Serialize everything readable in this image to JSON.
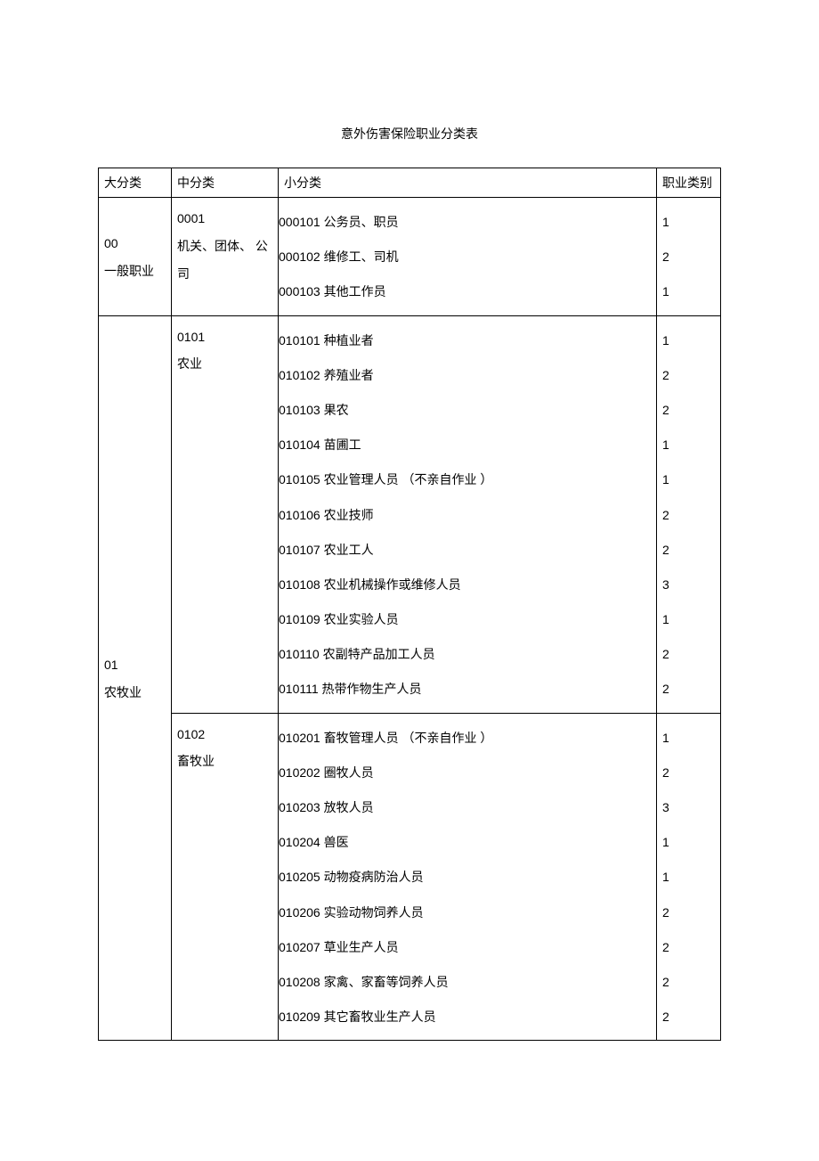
{
  "title": "意外伤害保险职业分类表",
  "headers": {
    "major": "大分类",
    "mid": "中分类",
    "sub": "小分类",
    "category": "职业类别"
  },
  "groups": [
    {
      "major_code": "00",
      "major_name": "一般职业",
      "mids": [
        {
          "mid_code": "0001",
          "mid_name": "机关、团体、 公司",
          "rows": [
            {
              "sub": "000101 公务员、职员",
              "cat": "1"
            },
            {
              "sub": "000102 维修工、司机",
              "cat": "2"
            },
            {
              "sub": "000103 其他工作员",
              "cat": "1"
            }
          ]
        }
      ]
    },
    {
      "major_code": "01",
      "major_name": "农牧业",
      "mids": [
        {
          "mid_code": "0101",
          "mid_name": "农业",
          "rows": [
            {
              "sub": "010101 种植业者",
              "cat": "1"
            },
            {
              "sub": "010102 养殖业者",
              "cat": "2"
            },
            {
              "sub": "010103 果农",
              "cat": "2"
            },
            {
              "sub": "010104 苗圃工",
              "cat": "1"
            },
            {
              "sub": "010105 农业管理人员  （不亲自作业  ）",
              "cat": "1"
            },
            {
              "sub": "010106 农业技师",
              "cat": "2"
            },
            {
              "sub": "010107 农业工人",
              "cat": "2"
            },
            {
              "sub": "010108 农业机械操作或维修人员",
              "cat": "3"
            },
            {
              "sub": "010109 农业实验人员",
              "cat": "1"
            },
            {
              "sub": "010110 农副特产品加工人员",
              "cat": "2"
            },
            {
              "sub": "010111 热带作物生产人员",
              "cat": "2"
            }
          ]
        },
        {
          "mid_code": "0102",
          "mid_name": "畜牧业",
          "rows": [
            {
              "sub": "010201 畜牧管理人员  （不亲自作业  ）",
              "cat": "1"
            },
            {
              "sub": "010202 圈牧人员",
              "cat": "2"
            },
            {
              "sub": "010203 放牧人员",
              "cat": "3"
            },
            {
              "sub": "010204 兽医",
              "cat": "1"
            },
            {
              "sub": "010205 动物疫病防治人员",
              "cat": "1"
            },
            {
              "sub": "010206 实验动物饲养人员",
              "cat": "2"
            },
            {
              "sub": "010207 草业生产人员",
              "cat": "2"
            },
            {
              "sub": "010208 家禽、家畜等饲养人员",
              "cat": "2"
            },
            {
              "sub": "010209 其它畜牧业生产人员",
              "cat": "2"
            }
          ]
        }
      ]
    }
  ]
}
